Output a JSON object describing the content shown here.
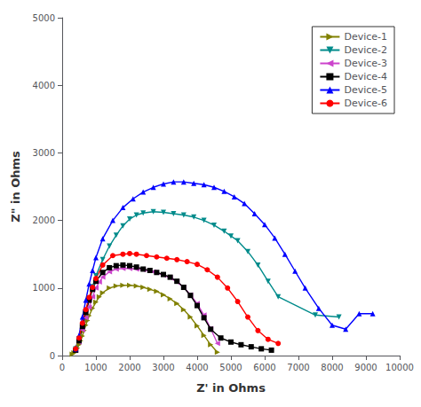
{
  "chart_data": {
    "type": "line",
    "xlabel": "Z' in Ohms",
    "ylabel": "Z\" in Ohms",
    "xlim": [
      0,
      10000
    ],
    "ylim": [
      0,
      5000
    ],
    "xticks": [
      0,
      1000,
      2000,
      3000,
      4000,
      5000,
      6000,
      7000,
      8000,
      9000,
      10000
    ],
    "yticks": [
      0,
      1000,
      2000,
      3000,
      4000,
      5000
    ],
    "grid": false,
    "legend": "upper right",
    "series": [
      {
        "name": "Device-1",
        "color": "#808000",
        "marker": "triangle-right",
        "x": [
          300,
          350,
          400,
          450,
          500,
          550,
          600,
          650,
          700,
          750,
          800,
          900,
          1000,
          1100,
          1200,
          1400,
          1600,
          1800,
          2000,
          2200,
          2400,
          2600,
          2800,
          3000,
          3200,
          3400,
          3600,
          3800,
          4000,
          4200,
          4400,
          4600
        ],
        "values": [
          20,
          40,
          70,
          110,
          160,
          220,
          290,
          370,
          450,
          520,
          590,
          700,
          790,
          870,
          930,
          1000,
          1030,
          1040,
          1040,
          1030,
          1010,
          980,
          950,
          900,
          840,
          770,
          680,
          570,
          440,
          300,
          160,
          50
        ]
      },
      {
        "name": "Device-2",
        "color": "#008B8B",
        "marker": "triangle-down",
        "x": [
          400,
          500,
          600,
          700,
          800,
          900,
          1000,
          1200,
          1400,
          1600,
          1800,
          2000,
          2200,
          2400,
          2700,
          3000,
          3300,
          3600,
          3900,
          4200,
          4500,
          4800,
          5000,
          5200,
          5500,
          5800,
          6100,
          6400,
          7500,
          8200
        ],
        "values": [
          100,
          250,
          450,
          650,
          850,
          1020,
          1180,
          1420,
          1620,
          1780,
          1920,
          2020,
          2080,
          2110,
          2130,
          2120,
          2100,
          2080,
          2050,
          2000,
          1930,
          1840,
          1770,
          1700,
          1540,
          1340,
          1100,
          870,
          600,
          570
        ]
      },
      {
        "name": "Device-3",
        "color": "#CC44CC",
        "marker": "triangle-left",
        "x": [
          400,
          500,
          600,
          700,
          800,
          900,
          1000,
          1100,
          1200,
          1400,
          1600,
          1800,
          2000,
          2200,
          2400,
          2700,
          3000,
          3200,
          3400,
          3600,
          3800,
          4000,
          4200,
          4400,
          4600
        ],
        "values": [
          80,
          200,
          380,
          560,
          720,
          870,
          1000,
          1090,
          1160,
          1240,
          1280,
          1290,
          1290,
          1280,
          1270,
          1240,
          1190,
          1150,
          1090,
          1010,
          900,
          770,
          600,
          400,
          180
        ]
      },
      {
        "name": "Device-4",
        "color": "#000000",
        "marker": "square",
        "x": [
          400,
          500,
          600,
          700,
          800,
          900,
          1000,
          1200,
          1400,
          1600,
          1800,
          2000,
          2200,
          2400,
          2600,
          2800,
          3000,
          3200,
          3400,
          3600,
          3800,
          4000,
          4200,
          4400,
          4700,
          5000,
          5300,
          5600,
          5900,
          6200
        ],
        "values": [
          80,
          220,
          430,
          640,
          820,
          980,
          1100,
          1230,
          1300,
          1330,
          1340,
          1330,
          1310,
          1280,
          1260,
          1230,
          1200,
          1160,
          1100,
          1010,
          890,
          740,
          560,
          390,
          260,
          200,
          160,
          130,
          100,
          80
        ]
      },
      {
        "name": "Device-5",
        "color": "#0000FF",
        "marker": "triangle-up",
        "x": [
          400,
          500,
          600,
          700,
          800,
          900,
          1000,
          1200,
          1500,
          1800,
          2100,
          2400,
          2700,
          3000,
          3300,
          3600,
          3900,
          4200,
          4500,
          4800,
          5100,
          5400,
          5700,
          6000,
          6300,
          6600,
          6900,
          7200,
          7600,
          8000,
          8400,
          8800,
          9200
        ],
        "values": [
          100,
          300,
          570,
          820,
          1060,
          1260,
          1450,
          1730,
          2000,
          2190,
          2320,
          2420,
          2490,
          2540,
          2570,
          2570,
          2550,
          2530,
          2490,
          2430,
          2350,
          2250,
          2100,
          1940,
          1740,
          1500,
          1250,
          1000,
          700,
          450,
          390,
          620,
          620
        ]
      },
      {
        "name": "Device-6",
        "color": "#FF0000",
        "marker": "circle",
        "x": [
          400,
          500,
          600,
          700,
          800,
          900,
          1000,
          1200,
          1500,
          1800,
          2000,
          2200,
          2500,
          2800,
          3100,
          3400,
          3700,
          4000,
          4300,
          4600,
          4900,
          5200,
          5500,
          5800,
          6100,
          6400
        ],
        "values": [
          100,
          260,
          480,
          680,
          860,
          1010,
          1140,
          1340,
          1480,
          1500,
          1510,
          1500,
          1480,
          1460,
          1440,
          1420,
          1390,
          1350,
          1270,
          1160,
          1000,
          800,
          570,
          370,
          240,
          180
        ]
      }
    ]
  }
}
